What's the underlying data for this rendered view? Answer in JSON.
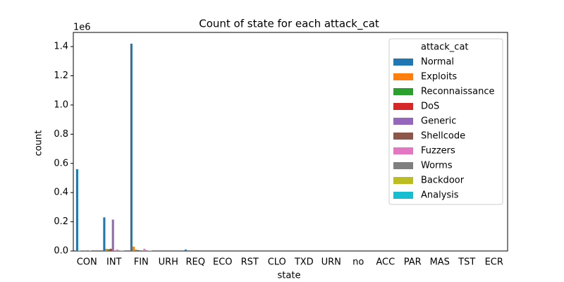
{
  "chart_data": {
    "type": "bar",
    "title": "Count of state for each attack_cat",
    "x_label": "state",
    "y_label": "count",
    "y_offset_label": "1e6",
    "categories": [
      "CON",
      "INT",
      "FIN",
      "URH",
      "REQ",
      "ECO",
      "RST",
      "CLO",
      "TXD",
      "URN",
      "no",
      "ACC",
      "PAR",
      "MAS",
      "TST",
      "ECR"
    ],
    "series": [
      {
        "name": "Normal",
        "color": "#1f77b4",
        "values": [
          0.56,
          0.23,
          1.42,
          0,
          0.01,
          0,
          0,
          0,
          0,
          0,
          0,
          0,
          0,
          0,
          0,
          0
        ]
      },
      {
        "name": "Exploits",
        "color": "#ff7f0e",
        "values": [
          0.002,
          0.015,
          0.03,
          0,
          0,
          0,
          0,
          0,
          0,
          0,
          0,
          0,
          0,
          0,
          0,
          0
        ]
      },
      {
        "name": "Reconnaissance",
        "color": "#2ca02c",
        "values": [
          0.001,
          0.012,
          0.008,
          0,
          0,
          0,
          0,
          0,
          0,
          0,
          0,
          0,
          0,
          0,
          0,
          0
        ]
      },
      {
        "name": "DoS",
        "color": "#d62728",
        "values": [
          0.001,
          0.015,
          0.006,
          0,
          0,
          0,
          0,
          0,
          0,
          0,
          0,
          0,
          0,
          0,
          0,
          0
        ]
      },
      {
        "name": "Generic",
        "color": "#9467bd",
        "values": [
          0.001,
          0.215,
          0.005,
          0,
          0,
          0,
          0,
          0,
          0,
          0,
          0,
          0,
          0,
          0,
          0,
          0
        ]
      },
      {
        "name": "Shellcode",
        "color": "#8c564b",
        "values": [
          0,
          0.002,
          0.001,
          0,
          0,
          0,
          0,
          0,
          0,
          0,
          0,
          0,
          0,
          0,
          0,
          0
        ]
      },
      {
        "name": "Fuzzers",
        "color": "#e377c2",
        "values": [
          0.002,
          0.01,
          0.015,
          0,
          0,
          0,
          0,
          0,
          0,
          0,
          0,
          0,
          0,
          0,
          0,
          0
        ]
      },
      {
        "name": "Worms",
        "color": "#7f7f7f",
        "values": [
          0,
          0.001,
          0,
          0,
          0,
          0,
          0,
          0,
          0,
          0,
          0,
          0,
          0,
          0,
          0,
          0
        ]
      },
      {
        "name": "Backdoor",
        "color": "#bcbd22",
        "values": [
          0,
          0.002,
          0.002,
          0,
          0,
          0,
          0,
          0,
          0,
          0,
          0,
          0,
          0,
          0,
          0,
          0
        ]
      },
      {
        "name": "Analysis",
        "color": "#17becf",
        "values": [
          0,
          0.001,
          0.002,
          0,
          0,
          0,
          0,
          0,
          0,
          0,
          0,
          0,
          0,
          0,
          0,
          0
        ]
      }
    ],
    "legend_title": "attack_cat",
    "legend_position": "upper-right",
    "ylim": [
      0,
      1.497
    ],
    "yticks": [
      {
        "value": 0,
        "label": "0.0"
      },
      {
        "value": 0.2,
        "label": "0.2"
      },
      {
        "value": 0.4,
        "label": "0.4"
      },
      {
        "value": 0.6,
        "label": "0.6"
      },
      {
        "value": 0.8,
        "label": "0.8"
      },
      {
        "value": 1,
        "label": "1.0"
      },
      {
        "value": 1.2,
        "label": "1.2"
      },
      {
        "value": 1.4,
        "label": "1.4"
      }
    ]
  }
}
